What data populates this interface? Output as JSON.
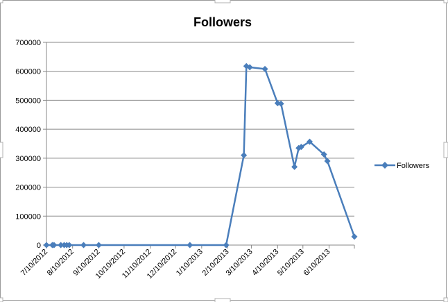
{
  "chart_data": {
    "type": "line",
    "title": "Followers",
    "xlabel": "",
    "ylabel": "",
    "ylim": [
      0,
      700000
    ],
    "y_ticks": [
      "0",
      "100000",
      "200000",
      "300000",
      "400000",
      "500000",
      "600000",
      "700000"
    ],
    "x_ticks": [
      "7/10/2012",
      "8/10/2012",
      "9/10/2012",
      "10/10/2012",
      "11/10/2012",
      "12/10/2012",
      "1/10/2013",
      "2/10/2013",
      "3/10/2013",
      "4/10/2013",
      "5/10/2013",
      "6/10/2013"
    ],
    "xlim": [
      "2012-07-10",
      "2013-07-10"
    ],
    "grid": true,
    "legend": "right",
    "color": "#4a7ebb",
    "series": [
      {
        "name": "Followers",
        "points": [
          {
            "x": "2012-07-10",
            "y": 0
          },
          {
            "x": "2012-07-17",
            "y": 0
          },
          {
            "x": "2012-07-19",
            "y": 0
          },
          {
            "x": "2012-07-27",
            "y": 0
          },
          {
            "x": "2012-07-31",
            "y": 0
          },
          {
            "x": "2012-08-03",
            "y": 0
          },
          {
            "x": "2012-08-06",
            "y": 0
          },
          {
            "x": "2012-08-23",
            "y": 0
          },
          {
            "x": "2012-09-10",
            "y": 0
          },
          {
            "x": "2012-12-27",
            "y": 0
          },
          {
            "x": "2013-02-08",
            "y": 0
          },
          {
            "x": "2013-03-01",
            "y": 310000
          },
          {
            "x": "2013-03-04",
            "y": 618000
          },
          {
            "x": "2013-03-08",
            "y": 614000
          },
          {
            "x": "2013-03-26",
            "y": 608000
          },
          {
            "x": "2013-04-10",
            "y": 490000
          },
          {
            "x": "2013-04-14",
            "y": 488000
          },
          {
            "x": "2013-04-30",
            "y": 270000
          },
          {
            "x": "2013-05-05",
            "y": 335000
          },
          {
            "x": "2013-05-08",
            "y": 339000
          },
          {
            "x": "2013-05-18",
            "y": 357000
          },
          {
            "x": "2013-06-04",
            "y": 313000
          },
          {
            "x": "2013-06-08",
            "y": 290000
          },
          {
            "x": "2013-07-10",
            "y": 29000
          }
        ]
      }
    ]
  }
}
